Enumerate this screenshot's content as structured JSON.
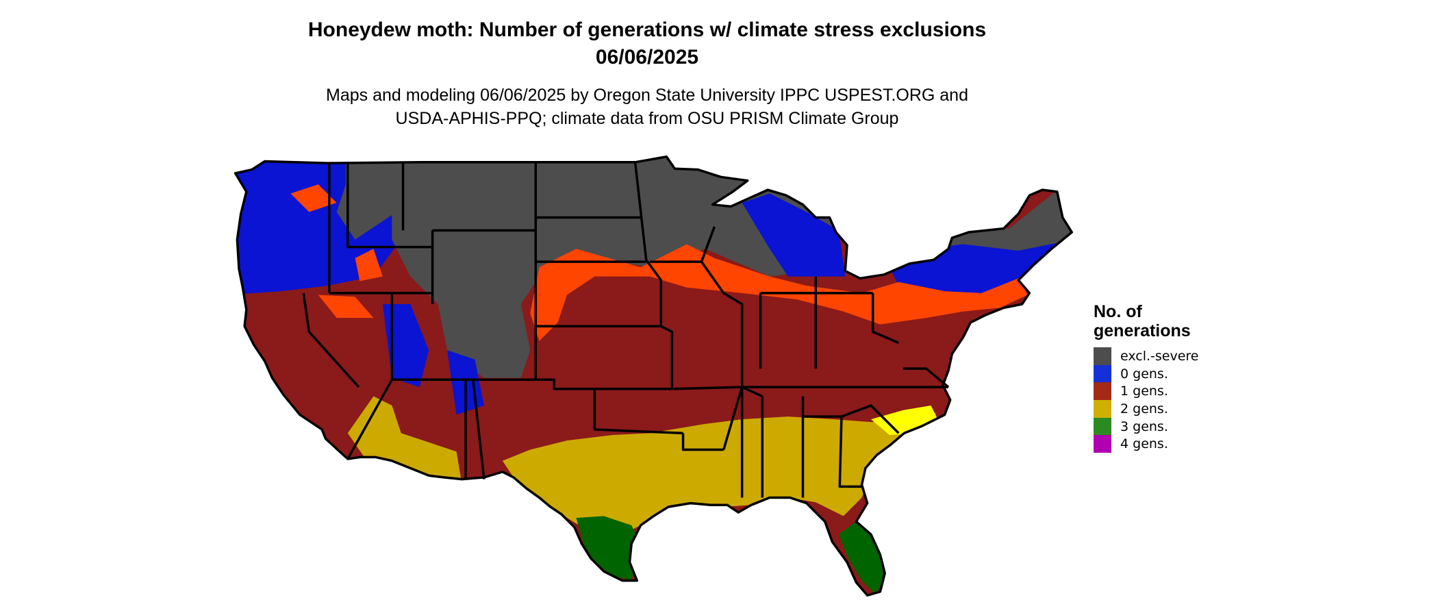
{
  "title_line1": "Honeydew moth: Number of generations w/ climate stress exclusions",
  "title_line2": "06/06/2025",
  "subtitle_line1": "Maps and modeling 06/06/2025 by Oregon State University IPPC USPEST.ORG and",
  "subtitle_line2": "USDA-APHIS-PPQ; climate data from OSU PRISM Climate Group",
  "legend": {
    "title": "No. of generations",
    "items": [
      {
        "label": "excl.-severe",
        "color": "#4d4d4d"
      },
      {
        "label": "0 gens.",
        "color": "#1530d6"
      },
      {
        "label": "1 gens.",
        "color": "#a42a18"
      },
      {
        "label": "2 gens.",
        "color": "#cfb000"
      },
      {
        "label": "3 gens.",
        "color": "#2b8a22"
      },
      {
        "label": "4 gens.",
        "color": "#b000b0"
      }
    ]
  },
  "map_colors": {
    "excluded": "#4d4d4d",
    "zero": "#0a14d2",
    "zero_to_one": "#ff4500",
    "one": "#8b1a1a",
    "one_dark": "#7a1515",
    "two": "#cdaa00",
    "two_bright": "#ffff00",
    "three": "#006400",
    "three_light": "#90ee90",
    "four": "#c000c0",
    "border": "#000000"
  }
}
